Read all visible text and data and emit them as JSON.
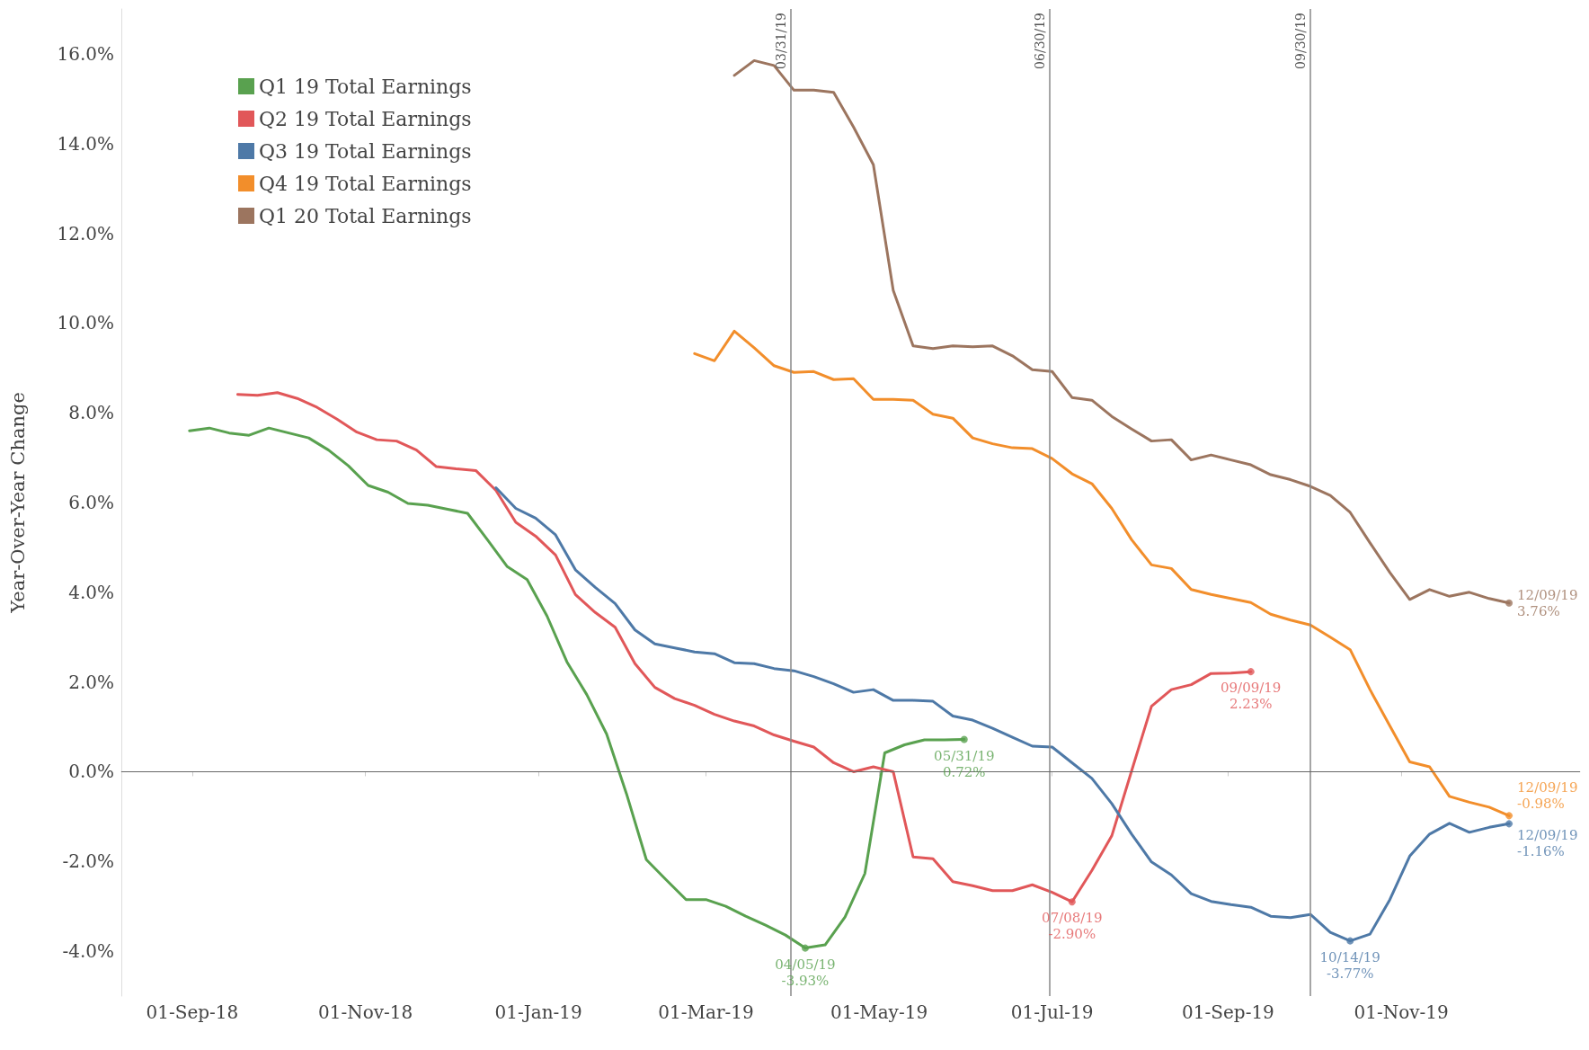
{
  "chart_data": {
    "type": "line",
    "ylabel": "Year-Over-Year Change",
    "grid": false,
    "legend": "top left",
    "marker": "none",
    "line_style": "solid",
    "xlim": [
      "2018-08-07",
      "2020-01-03"
    ],
    "xticks": [
      {
        "value": "2018-09-01",
        "label": "01-Sep-18"
      },
      {
        "value": "2018-11-01",
        "label": "01-Nov-18"
      },
      {
        "value": "2019-01-01",
        "label": "01-Jan-19"
      },
      {
        "value": "2019-03-01",
        "label": "01-Mar-19"
      },
      {
        "value": "2019-05-01",
        "label": "01-May-19"
      },
      {
        "value": "2019-07-01",
        "label": "01-Jul-19"
      },
      {
        "value": "2019-09-01",
        "label": "01-Sep-19"
      },
      {
        "value": "2019-11-01",
        "label": "01-Nov-19"
      }
    ],
    "ylim": [
      -5,
      17
    ],
    "yticks": [
      {
        "value": -4,
        "label": "-4.0%"
      },
      {
        "value": -2,
        "label": "-2.0%"
      },
      {
        "value": 0,
        "label": "0.0%"
      },
      {
        "value": 2,
        "label": "2.0%"
      },
      {
        "value": 4,
        "label": "4.0%"
      },
      {
        "value": 6,
        "label": "6.0%"
      },
      {
        "value": 8,
        "label": "8.0%"
      },
      {
        "value": 10,
        "label": "10.0%"
      },
      {
        "value": 12,
        "label": "12.0%"
      },
      {
        "value": 14,
        "label": "14.0%"
      },
      {
        "value": 16,
        "label": "16.0%"
      }
    ],
    "series": [
      {
        "name": "Q1 19 Total Earnings",
        "color": "#59a14f",
        "x": [
          "2018-08-31",
          "2018-09-07",
          "2018-09-14",
          "2018-09-21",
          "2018-09-28",
          "2018-10-05",
          "2018-10-12",
          "2018-10-19",
          "2018-10-26",
          "2018-11-02",
          "2018-11-09",
          "2018-11-16",
          "2018-11-23",
          "2018-11-30",
          "2018-12-07",
          "2018-12-14",
          "2018-12-21",
          "2018-12-28",
          "2019-01-04",
          "2019-01-11",
          "2019-01-18",
          "2019-01-25",
          "2019-02-01",
          "2019-02-08",
          "2019-02-15",
          "2019-02-22",
          "2019-03-01",
          "2019-03-08",
          "2019-03-15",
          "2019-03-22",
          "2019-03-29",
          "2019-04-05",
          "2019-04-12",
          "2019-04-19",
          "2019-04-26",
          "2019-05-03",
          "2019-05-10",
          "2019-05-17",
          "2019-05-24",
          "2019-05-31"
        ],
        "values": [
          7.6,
          7.66,
          7.55,
          7.5,
          7.66,
          7.55,
          7.44,
          7.17,
          6.82,
          6.38,
          6.23,
          5.98,
          5.94,
          5.85,
          5.76,
          5.17,
          4.57,
          4.28,
          3.47,
          2.45,
          1.72,
          0.84,
          -0.49,
          -1.96,
          -2.41,
          -2.85,
          -2.85,
          -3.0,
          -3.22,
          -3.42,
          -3.64,
          -3.93,
          -3.86,
          -3.24,
          -2.27,
          0.42,
          0.6,
          0.71,
          0.71,
          0.72
        ]
      },
      {
        "name": "Q2 19 Total Earnings",
        "color": "#e15759",
        "x": [
          "2018-09-17",
          "2018-09-24",
          "2018-10-01",
          "2018-10-08",
          "2018-10-15",
          "2018-10-22",
          "2018-10-29",
          "2018-11-05",
          "2018-11-12",
          "2018-11-19",
          "2018-11-26",
          "2018-12-03",
          "2018-12-10",
          "2018-12-17",
          "2018-12-24",
          "2018-12-31",
          "2019-01-07",
          "2019-01-14",
          "2019-01-21",
          "2019-01-28",
          "2019-02-04",
          "2019-02-11",
          "2019-02-18",
          "2019-02-25",
          "2019-03-04",
          "2019-03-11",
          "2019-03-18",
          "2019-03-25",
          "2019-04-01",
          "2019-04-08",
          "2019-04-15",
          "2019-04-22",
          "2019-04-29",
          "2019-05-06",
          "2019-05-13",
          "2019-05-20",
          "2019-05-27",
          "2019-06-03",
          "2019-06-10",
          "2019-06-17",
          "2019-06-24",
          "2019-07-01",
          "2019-07-08",
          "2019-07-15",
          "2019-07-22",
          "2019-07-29",
          "2019-08-05",
          "2019-08-12",
          "2019-08-19",
          "2019-08-26",
          "2019-09-02",
          "2019-09-09"
        ],
        "values": [
          8.41,
          8.39,
          8.45,
          8.32,
          8.12,
          7.86,
          7.57,
          7.4,
          7.37,
          7.17,
          6.8,
          6.75,
          6.71,
          6.27,
          5.56,
          5.25,
          4.83,
          3.95,
          3.55,
          3.22,
          2.41,
          1.88,
          1.63,
          1.48,
          1.28,
          1.13,
          1.02,
          0.82,
          0.68,
          0.55,
          0.2,
          0.0,
          0.11,
          0.0,
          -1.9,
          -1.94,
          -2.45,
          -2.54,
          -2.65,
          -2.65,
          -2.52,
          -2.69,
          -2.9,
          -2.2,
          -1.43,
          0.02,
          1.46,
          1.83,
          1.94,
          2.19,
          2.2,
          2.23
        ]
      },
      {
        "name": "Q3 19 Total Earnings",
        "color": "#4e79a7",
        "x": [
          "2018-12-17",
          "2018-12-24",
          "2018-12-31",
          "2019-01-07",
          "2019-01-14",
          "2019-01-21",
          "2019-01-28",
          "2019-02-04",
          "2019-02-11",
          "2019-02-18",
          "2019-02-25",
          "2019-03-04",
          "2019-03-11",
          "2019-03-18",
          "2019-03-25",
          "2019-04-01",
          "2019-04-08",
          "2019-04-15",
          "2019-04-22",
          "2019-04-29",
          "2019-05-06",
          "2019-05-13",
          "2019-05-20",
          "2019-05-27",
          "2019-06-03",
          "2019-06-10",
          "2019-06-17",
          "2019-06-24",
          "2019-07-01",
          "2019-07-08",
          "2019-07-15",
          "2019-07-22",
          "2019-07-29",
          "2019-08-05",
          "2019-08-12",
          "2019-08-19",
          "2019-08-26",
          "2019-09-02",
          "2019-09-09",
          "2019-09-16",
          "2019-09-23",
          "2019-09-30",
          "2019-10-07",
          "2019-10-14",
          "2019-10-21",
          "2019-10-28",
          "2019-11-04",
          "2019-11-11",
          "2019-11-18",
          "2019-11-25",
          "2019-12-02",
          "2019-12-09"
        ],
        "values": [
          6.33,
          5.87,
          5.65,
          5.28,
          4.5,
          4.11,
          3.75,
          3.16,
          2.85,
          2.76,
          2.67,
          2.63,
          2.43,
          2.41,
          2.3,
          2.25,
          2.12,
          1.96,
          1.77,
          1.83,
          1.59,
          1.59,
          1.57,
          1.24,
          1.15,
          0.97,
          0.77,
          0.57,
          0.55,
          0.2,
          -0.15,
          -0.71,
          -1.39,
          -2.01,
          -2.3,
          -2.72,
          -2.89,
          -2.96,
          -3.02,
          -3.22,
          -3.25,
          -3.18,
          -3.58,
          -3.77,
          -3.62,
          -2.85,
          -1.88,
          -1.39,
          -1.15,
          -1.35,
          -1.24,
          -1.16
        ]
      },
      {
        "name": "Q4 19 Total Earnings",
        "color": "#f28e2b",
        "x": [
          "2019-02-25",
          "2019-03-04",
          "2019-03-11",
          "2019-03-18",
          "2019-03-25",
          "2019-04-01",
          "2019-04-08",
          "2019-04-15",
          "2019-04-22",
          "2019-04-29",
          "2019-05-06",
          "2019-05-13",
          "2019-05-20",
          "2019-05-27",
          "2019-06-03",
          "2019-06-10",
          "2019-06-17",
          "2019-06-24",
          "2019-07-01",
          "2019-07-08",
          "2019-07-15",
          "2019-07-22",
          "2019-07-29",
          "2019-08-05",
          "2019-08-12",
          "2019-08-19",
          "2019-08-26",
          "2019-09-02",
          "2019-09-09",
          "2019-09-16",
          "2019-09-23",
          "2019-09-30",
          "2019-10-07",
          "2019-10-14",
          "2019-10-21",
          "2019-10-28",
          "2019-11-04",
          "2019-11-11",
          "2019-11-18",
          "2019-11-25",
          "2019-12-02",
          "2019-12-09"
        ],
        "values": [
          9.32,
          9.16,
          9.82,
          9.45,
          9.05,
          8.9,
          8.92,
          8.74,
          8.76,
          8.3,
          8.3,
          8.28,
          7.97,
          7.88,
          7.44,
          7.31,
          7.22,
          7.2,
          6.98,
          6.64,
          6.42,
          5.87,
          5.17,
          4.61,
          4.53,
          4.06,
          3.95,
          3.86,
          3.77,
          3.51,
          3.38,
          3.27,
          3.0,
          2.72,
          1.83,
          1.02,
          0.22,
          0.11,
          -0.55,
          -0.68,
          -0.79,
          -0.98
        ]
      },
      {
        "name": "Q1 20 Total Earnings",
        "color": "#9c755f",
        "x": [
          "2019-03-11",
          "2019-03-18",
          "2019-03-25",
          "2019-04-01",
          "2019-04-08",
          "2019-04-15",
          "2019-04-22",
          "2019-04-29",
          "2019-05-06",
          "2019-05-13",
          "2019-05-20",
          "2019-05-27",
          "2019-06-03",
          "2019-06-10",
          "2019-06-17",
          "2019-06-24",
          "2019-07-01",
          "2019-07-08",
          "2019-07-15",
          "2019-07-22",
          "2019-07-29",
          "2019-08-05",
          "2019-08-12",
          "2019-08-19",
          "2019-08-26",
          "2019-09-02",
          "2019-09-09",
          "2019-09-16",
          "2019-09-23",
          "2019-09-30",
          "2019-10-07",
          "2019-10-14",
          "2019-10-21",
          "2019-10-28",
          "2019-11-04",
          "2019-11-11",
          "2019-11-18",
          "2019-11-25",
          "2019-12-02",
          "2019-12-09"
        ],
        "values": [
          15.52,
          15.85,
          15.74,
          15.19,
          15.19,
          15.14,
          14.37,
          13.53,
          10.73,
          9.49,
          9.43,
          9.49,
          9.47,
          9.49,
          9.27,
          8.96,
          8.92,
          8.34,
          8.28,
          7.92,
          7.64,
          7.37,
          7.4,
          6.95,
          7.06,
          6.95,
          6.84,
          6.62,
          6.51,
          6.36,
          6.16,
          5.78,
          5.1,
          4.44,
          3.84,
          4.06,
          3.91,
          4.0,
          3.86,
          3.76
        ]
      }
    ],
    "ref_lines": [
      {
        "axis": "x",
        "value": "2019-03-31",
        "label": "03/31/19",
        "color": "#888888"
      },
      {
        "axis": "x",
        "value": "2019-06-30",
        "label": "06/30/19",
        "color": "#888888"
      },
      {
        "axis": "x",
        "value": "2019-09-30",
        "label": "09/30/19",
        "color": "#888888"
      },
      {
        "axis": "y",
        "value": 0,
        "color": "#666666"
      }
    ],
    "annotations": [
      {
        "text": "04/05/19\n-3.93%",
        "x": "2019-04-05",
        "y": -3.93
      },
      {
        "text": "05/31/19\n0.72%",
        "x": "2019-05-31",
        "y": 0.72
      },
      {
        "text": "07/08/19\n-2.90%",
        "x": "2019-07-08",
        "y": -2.9
      },
      {
        "text": "09/09/19\n2.23%",
        "x": "2019-09-09",
        "y": 2.23
      },
      {
        "text": "10/14/19\n-3.77%",
        "x": "2019-10-14",
        "y": -3.77
      },
      {
        "text": "12/09/19\n3.76%",
        "x": "2019-12-09",
        "y": 3.76
      },
      {
        "text": "12/09/19\n-0.98%",
        "x": "2019-12-09",
        "y": -0.98
      },
      {
        "text": "12/09/19\n-1.16%",
        "x": "2019-12-09",
        "y": -1.16
      }
    ]
  }
}
